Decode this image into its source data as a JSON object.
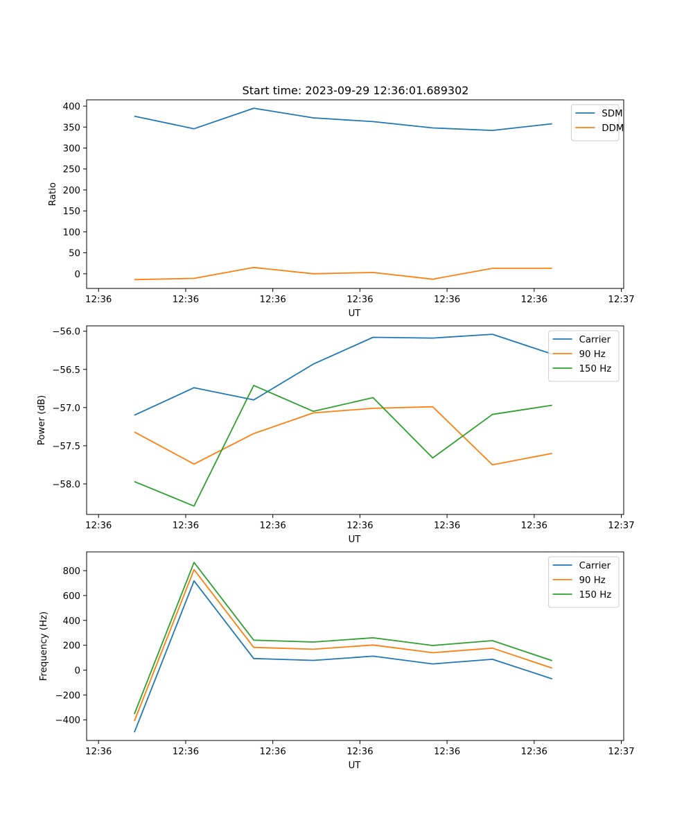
{
  "title": "Start time: 2023-09-29 12:36:01.689302",
  "colors": {
    "blue": "#1f77b4",
    "orange": "#ff7f0e",
    "green": "#2ca02c"
  },
  "chart_data": [
    {
      "type": "line",
      "title": "Start time: 2023-09-29 12:36:01.689302",
      "xlabel": "UT",
      "ylabel": "Ratio",
      "x": [
        1,
        2,
        3,
        4,
        5,
        6,
        7,
        8
      ],
      "xlim": [
        0.2,
        9.2
      ],
      "xticks": [
        0.4,
        1.86,
        3.32,
        4.78,
        6.24,
        7.7,
        9.16
      ],
      "xtick_labels": [
        "12:36",
        "12:36",
        "12:36",
        "12:36",
        "12:36",
        "12:36",
        "12:37"
      ],
      "ylim": [
        -35,
        415
      ],
      "yticks": [
        0,
        50,
        100,
        150,
        200,
        250,
        300,
        350,
        400
      ],
      "ytick_labels": [
        "0",
        "50",
        "100",
        "150",
        "200",
        "250",
        "300",
        "350",
        "400"
      ],
      "legend": "top-right",
      "series": [
        {
          "name": "SDM",
          "color": "#1f77b4",
          "values": [
            376,
            346,
            395,
            372,
            363,
            348,
            342,
            358
          ]
        },
        {
          "name": "DDM",
          "color": "#ff7f0e",
          "values": [
            -14,
            -11,
            15,
            0,
            3,
            -13,
            13,
            13
          ]
        }
      ]
    },
    {
      "type": "line",
      "title": "",
      "xlabel": "UT",
      "ylabel": "Power (dB)",
      "x": [
        1,
        2,
        3,
        4,
        5,
        6,
        7,
        8
      ],
      "xlim": [
        0.2,
        9.2
      ],
      "xticks": [
        0.4,
        1.86,
        3.32,
        4.78,
        6.24,
        7.7,
        9.16
      ],
      "xtick_labels": [
        "12:36",
        "12:36",
        "12:36",
        "12:36",
        "12:36",
        "12:36",
        "12:37"
      ],
      "ylim": [
        -58.4,
        -55.93
      ],
      "yticks": [
        -58.0,
        -57.5,
        -57.0,
        -56.5,
        -56.0
      ],
      "ytick_labels": [
        "−58.0",
        "−57.5",
        "−57.0",
        "−56.5",
        "−56.0"
      ],
      "legend": "top-right",
      "series": [
        {
          "name": "Carrier",
          "color": "#1f77b4",
          "values": [
            -57.1,
            -56.74,
            -56.9,
            -56.43,
            -56.08,
            -56.09,
            -56.04,
            -56.3
          ]
        },
        {
          "name": "90 Hz",
          "color": "#ff7f0e",
          "values": [
            -57.32,
            -57.74,
            -57.34,
            -57.07,
            -57.01,
            -56.99,
            -57.75,
            -57.6
          ]
        },
        {
          "name": "150 Hz",
          "color": "#2ca02c",
          "values": [
            -57.97,
            -58.29,
            -56.71,
            -57.05,
            -56.87,
            -57.66,
            -57.09,
            -56.97
          ]
        }
      ]
    },
    {
      "type": "line",
      "title": "",
      "xlabel": "UT",
      "ylabel": "Frequency (Hz)",
      "x": [
        1,
        2,
        3,
        4,
        5,
        6,
        7,
        8
      ],
      "xlim": [
        0.2,
        9.2
      ],
      "xticks": [
        0.4,
        1.86,
        3.32,
        4.78,
        6.24,
        7.7,
        9.16
      ],
      "xtick_labels": [
        "12:36",
        "12:36",
        "12:36",
        "12:36",
        "12:36",
        "12:36",
        "12:37"
      ],
      "ylim": [
        -566,
        951
      ],
      "yticks": [
        -400,
        -200,
        0,
        200,
        400,
        600,
        800
      ],
      "ytick_labels": [
        "−400",
        "−200",
        "0",
        "200",
        "400",
        "600",
        "800"
      ],
      "legend": "top-right",
      "series": [
        {
          "name": "Carrier",
          "color": "#1f77b4",
          "values": [
            -500,
            718,
            93,
            78,
            112,
            50,
            87,
            -70
          ]
        },
        {
          "name": "90 Hz",
          "color": "#ff7f0e",
          "values": [
            -410,
            808,
            183,
            168,
            202,
            140,
            177,
            16
          ]
        },
        {
          "name": "150 Hz",
          "color": "#2ca02c",
          "values": [
            -353,
            866,
            241,
            226,
            260,
            198,
            237,
            76
          ]
        }
      ]
    }
  ]
}
